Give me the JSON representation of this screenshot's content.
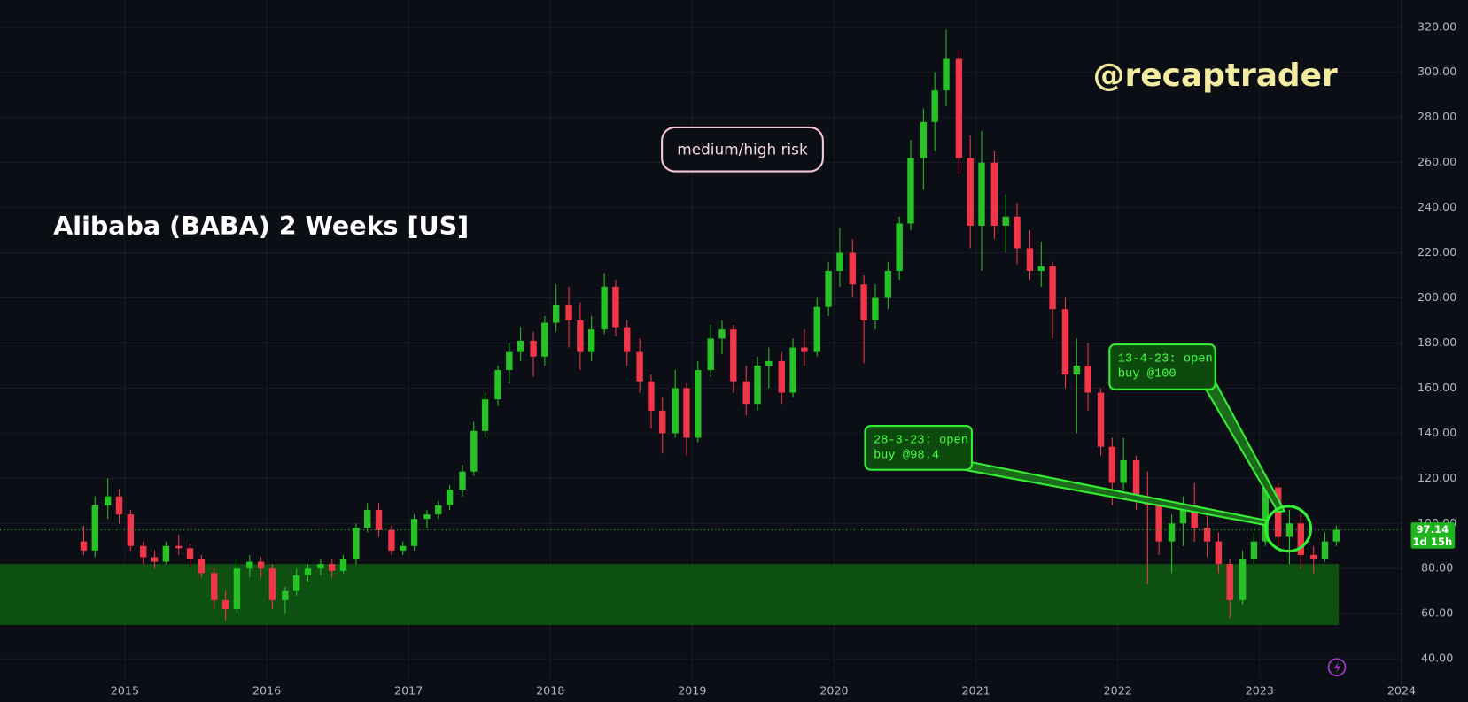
{
  "chart_data": {
    "type": "candlestick",
    "title": "Alibaba (BABA) 2 Weeks [US]",
    "watermark": "@recaptrader",
    "risk_label": "medium/high risk",
    "annotations": [
      {
        "lines": [
          "28-3-23: open",
          "buy @98.4"
        ]
      },
      {
        "lines": [
          "13-4-23: open",
          "buy @100"
        ]
      }
    ],
    "last_price": 97.14,
    "countdown": "1d 15h",
    "zone": [
      55,
      82
    ],
    "zone_color": "#0f5a12",
    "up_color": "#26c226",
    "down_color": "#f2364a",
    "grid": true,
    "xlim": [
      2014.12,
      2024.0
    ],
    "ylim": [
      20.9,
      332.0
    ],
    "xticks": [
      2015,
      2016,
      2017,
      2018,
      2019,
      2020,
      2021,
      2022,
      2023,
      2024
    ],
    "yticks": [
      {
        "value": 40,
        "label": "40.00"
      },
      {
        "value": 60,
        "label": "60.00"
      },
      {
        "value": 80,
        "label": "80.00"
      },
      {
        "value": 100,
        "label": "100.00"
      },
      {
        "value": 120,
        "label": "120.00"
      },
      {
        "value": 140,
        "label": "140.00"
      },
      {
        "value": 160,
        "label": "160.00"
      },
      {
        "value": 180,
        "label": "180.00"
      },
      {
        "value": 200,
        "label": "200.00"
      },
      {
        "value": 220,
        "label": "220.00"
      },
      {
        "value": 240,
        "label": "240.00"
      },
      {
        "value": 260,
        "label": "260.00"
      },
      {
        "value": 280,
        "label": "280.00"
      },
      {
        "value": 300,
        "label": "300.00"
      },
      {
        "value": 320,
        "label": "320.00"
      }
    ],
    "x": [
      2014.71,
      2014.79,
      2014.88,
      2014.96,
      2015.04,
      2015.13,
      2015.21,
      2015.29,
      2015.38,
      2015.46,
      2015.54,
      2015.63,
      2015.71,
      2015.79,
      2015.88,
      2015.96,
      2016.04,
      2016.13,
      2016.21,
      2016.29,
      2016.38,
      2016.46,
      2016.54,
      2016.63,
      2016.71,
      2016.79,
      2016.88,
      2016.96,
      2017.04,
      2017.13,
      2017.21,
      2017.29,
      2017.38,
      2017.46,
      2017.54,
      2017.63,
      2017.71,
      2017.79,
      2017.88,
      2017.96,
      2018.04,
      2018.13,
      2018.21,
      2018.29,
      2018.38,
      2018.46,
      2018.54,
      2018.63,
      2018.71,
      2018.79,
      2018.88,
      2018.96,
      2019.04,
      2019.13,
      2019.21,
      2019.29,
      2019.38,
      2019.46,
      2019.54,
      2019.63,
      2019.71,
      2019.79,
      2019.88,
      2019.96,
      2020.04,
      2020.13,
      2020.21,
      2020.29,
      2020.38,
      2020.46,
      2020.54,
      2020.63,
      2020.71,
      2020.79,
      2020.88,
      2020.96,
      2021.04,
      2021.13,
      2021.21,
      2021.29,
      2021.38,
      2021.46,
      2021.54,
      2021.63,
      2021.71,
      2021.79,
      2021.88,
      2021.96,
      2022.04,
      2022.13,
      2022.21,
      2022.29,
      2022.38,
      2022.46,
      2022.54,
      2022.63,
      2022.71,
      2022.79,
      2022.88,
      2022.96,
      2023.04,
      2023.13,
      2023.21,
      2023.29,
      2023.38,
      2023.46,
      2023.54
    ],
    "open": [
      92,
      88,
      108,
      112,
      104,
      90,
      85,
      83,
      90,
      89,
      84,
      78,
      66,
      62,
      80,
      83,
      80,
      66,
      70,
      77,
      80,
      82,
      79,
      84,
      98,
      106,
      97,
      88,
      90,
      102,
      104,
      108,
      115,
      123,
      141,
      155,
      168,
      176,
      181,
      174,
      189,
      197,
      190,
      176,
      186,
      205,
      187,
      176,
      163,
      150,
      140,
      160,
      138,
      168,
      182,
      186,
      163,
      153,
      170,
      172,
      158,
      178,
      176,
      196,
      212,
      220,
      206,
      190,
      200,
      212,
      233,
      262,
      278,
      292,
      306,
      262,
      232,
      260,
      232,
      236,
      222,
      212,
      214,
      195,
      166,
      170,
      158,
      134,
      118,
      128,
      112,
      108,
      92,
      100,
      108,
      98,
      92,
      82,
      66,
      84,
      92,
      116,
      94,
      100,
      86,
      84,
      92
    ],
    "high": [
      99,
      112,
      120,
      115,
      106,
      92,
      88,
      92,
      95,
      91,
      86,
      80,
      70,
      84,
      86,
      85,
      82,
      72,
      80,
      82,
      84,
      84,
      86,
      100,
      109,
      109,
      99,
      92,
      104,
      106,
      110,
      117,
      126,
      145,
      158,
      170,
      180,
      187,
      185,
      192,
      206,
      205,
      198,
      192,
      211,
      208,
      190,
      182,
      166,
      156,
      168,
      162,
      172,
      188,
      190,
      188,
      170,
      174,
      178,
      176,
      182,
      186,
      200,
      216,
      231,
      226,
      210,
      206,
      216,
      236,
      270,
      284,
      300,
      319,
      310,
      272,
      274,
      265,
      246,
      242,
      230,
      225,
      216,
      200,
      182,
      180,
      160,
      138,
      138,
      130,
      123,
      110,
      104,
      112,
      118,
      104,
      96,
      84,
      88,
      96,
      122,
      118,
      106,
      104,
      90,
      96,
      99
    ],
    "low": [
      86,
      85,
      102,
      100,
      88,
      82,
      80,
      82,
      86,
      81,
      76,
      62,
      57,
      60,
      76,
      76,
      62,
      60,
      68,
      74,
      77,
      76,
      78,
      82,
      96,
      94,
      86,
      86,
      88,
      98,
      102,
      106,
      112,
      121,
      138,
      152,
      162,
      172,
      165,
      170,
      185,
      178,
      168,
      172,
      184,
      183,
      170,
      158,
      142,
      131,
      138,
      130,
      136,
      165,
      175,
      158,
      148,
      150,
      160,
      153,
      156,
      170,
      174,
      192,
      205,
      200,
      171,
      186,
      195,
      208,
      230,
      248,
      265,
      285,
      255,
      222,
      212,
      226,
      220,
      215,
      208,
      205,
      182,
      160,
      140,
      150,
      130,
      108,
      115,
      106,
      73,
      86,
      78,
      90,
      92,
      85,
      78,
      58,
      64,
      82,
      90,
      90,
      82,
      80,
      78,
      83,
      90
    ],
    "close": [
      88,
      108,
      112,
      104,
      90,
      85,
      83,
      90,
      89,
      84,
      78,
      66,
      62,
      80,
      83,
      80,
      66,
      70,
      77,
      80,
      82,
      79,
      84,
      98,
      106,
      97,
      88,
      90,
      102,
      104,
      108,
      115,
      123,
      141,
      155,
      168,
      176,
      181,
      174,
      189,
      197,
      190,
      176,
      186,
      205,
      187,
      176,
      163,
      150,
      140,
      160,
      138,
      168,
      182,
      186,
      163,
      153,
      170,
      172,
      158,
      178,
      176,
      196,
      212,
      220,
      206,
      190,
      200,
      212,
      233,
      262,
      278,
      292,
      306,
      262,
      232,
      260,
      232,
      236,
      222,
      212,
      214,
      195,
      166,
      170,
      158,
      134,
      118,
      128,
      112,
      108,
      92,
      100,
      108,
      98,
      92,
      82,
      66,
      84,
      92,
      116,
      94,
      100,
      86,
      84,
      92,
      97.14
    ]
  }
}
